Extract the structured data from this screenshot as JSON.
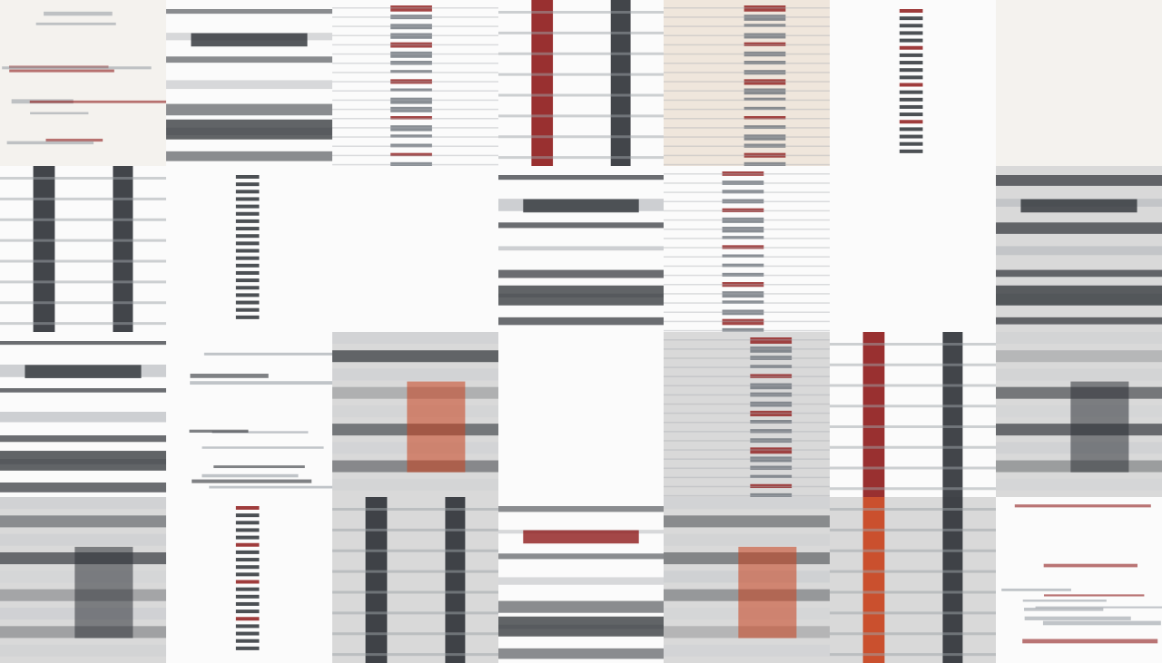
{
  "image": {
    "title": "",
    "grid": {
      "columns": 7,
      "rows": 4
    },
    "palette": {
      "paper": "#f4f2ee",
      "white": "#fbfbfb",
      "warm": "#efe6dc",
      "gray": "#d9d9d9",
      "dark": "#2d3136",
      "red": "#8e1a1a",
      "orange": "#c8401b"
    },
    "tiles": [
      {
        "name": "tile-r1-c1",
        "bg": "paper",
        "style": "sparse",
        "accent": "red",
        "tone": 1
      },
      {
        "name": "tile-r1-c2",
        "bg": "white",
        "style": "hband",
        "accent": "dark",
        "tone": 2
      },
      {
        "name": "tile-r1-c3",
        "bg": "white",
        "style": "ladder",
        "accent": "red",
        "tone": 2
      },
      {
        "name": "tile-r1-c4",
        "bg": "white",
        "style": "vstripes",
        "accent": "red",
        "tone": 3
      },
      {
        "name": "tile-r1-c5",
        "bg": "warm",
        "style": "ladder",
        "accent": "red",
        "tone": 2
      },
      {
        "name": "tile-r1-c6",
        "bg": "white",
        "style": "column",
        "accent": "red",
        "tone": 1
      },
      {
        "name": "tile-r1-c7",
        "bg": "paper",
        "style": "blank",
        "accent": "dark",
        "tone": 1
      },
      {
        "name": "tile-r2-c1",
        "bg": "white",
        "style": "vstripes",
        "accent": "dark",
        "tone": 3
      },
      {
        "name": "tile-r2-c2",
        "bg": "white",
        "style": "column",
        "accent": "dark",
        "tone": 1
      },
      {
        "name": "tile-r2-c3",
        "bg": "white",
        "style": "blank",
        "accent": "dark",
        "tone": 0
      },
      {
        "name": "tile-r2-c4",
        "bg": "white",
        "style": "hband",
        "accent": "dark",
        "tone": 3
      },
      {
        "name": "tile-r2-c5",
        "bg": "white",
        "style": "ladder",
        "accent": "red",
        "tone": 1
      },
      {
        "name": "tile-r2-c6",
        "bg": "white",
        "style": "blank",
        "accent": "red",
        "tone": 0
      },
      {
        "name": "tile-r2-c7",
        "bg": "gray",
        "style": "hband",
        "accent": "dark",
        "tone": 3
      },
      {
        "name": "tile-r3-c1",
        "bg": "white",
        "style": "hband",
        "accent": "dark",
        "tone": 3
      },
      {
        "name": "tile-r3-c2",
        "bg": "white",
        "style": "sparse",
        "accent": "dark",
        "tone": 0
      },
      {
        "name": "tile-r3-c3",
        "bg": "gray",
        "style": "smear",
        "accent": "orange",
        "tone": 3
      },
      {
        "name": "tile-r3-c4",
        "bg": "white",
        "style": "blank",
        "accent": "red",
        "tone": 0
      },
      {
        "name": "tile-r3-c5",
        "bg": "gray",
        "style": "ladder",
        "accent": "red",
        "tone": 2
      },
      {
        "name": "tile-r3-c6",
        "bg": "white",
        "style": "vstripes",
        "accent": "red",
        "tone": 3
      },
      {
        "name": "tile-r3-c7",
        "bg": "gray",
        "style": "smear",
        "accent": "dark",
        "tone": 3
      },
      {
        "name": "tile-r4-c1",
        "bg": "gray",
        "style": "smear",
        "accent": "dark",
        "tone": 3
      },
      {
        "name": "tile-r4-c2",
        "bg": "white",
        "style": "column",
        "accent": "red",
        "tone": 1
      },
      {
        "name": "tile-r4-c3",
        "bg": "gray",
        "style": "vstripes",
        "accent": "dark",
        "tone": 3
      },
      {
        "name": "tile-r4-c4",
        "bg": "white",
        "style": "hband",
        "accent": "red",
        "tone": 2
      },
      {
        "name": "tile-r4-c5",
        "bg": "gray",
        "style": "smear",
        "accent": "orange",
        "tone": 3
      },
      {
        "name": "tile-r4-c6",
        "bg": "gray",
        "style": "vstripes",
        "accent": "orange",
        "tone": 3
      },
      {
        "name": "tile-r4-c7",
        "bg": "white",
        "style": "sparse",
        "accent": "red",
        "tone": 1
      }
    ]
  }
}
